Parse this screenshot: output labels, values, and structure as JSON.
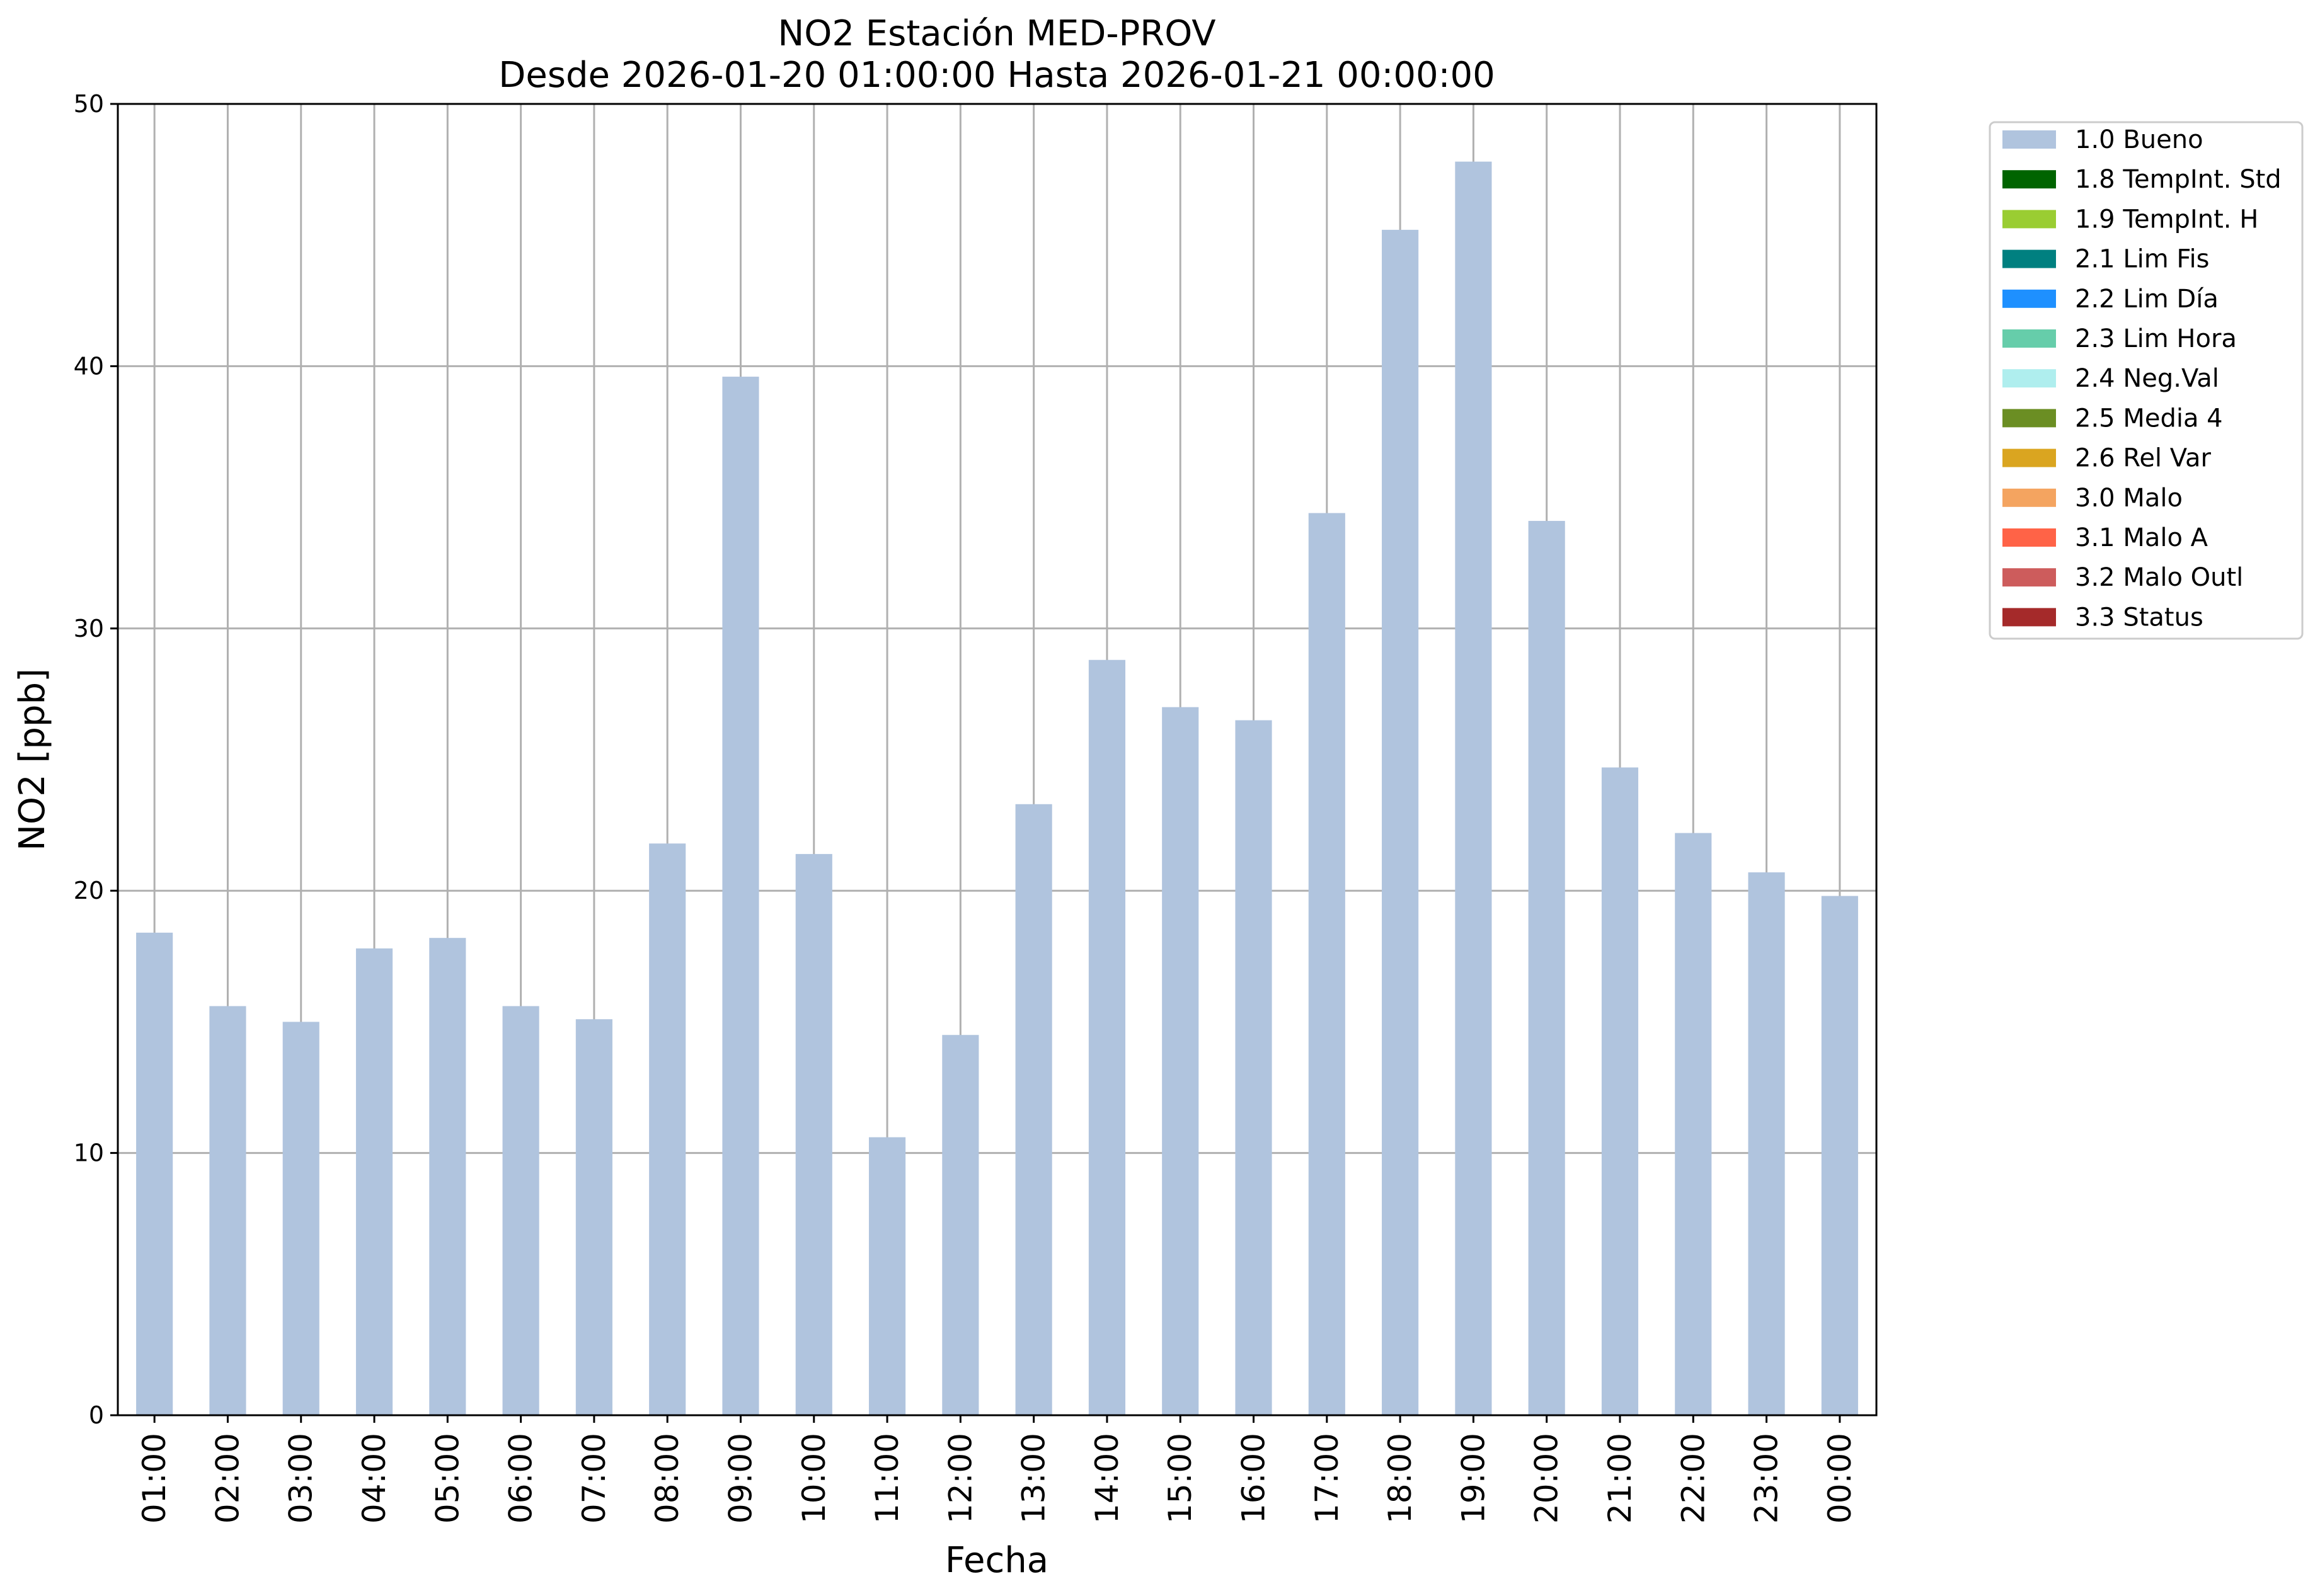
{
  "chart_data": {
    "type": "bar",
    "title_line1": "NO2 Estación MED-PROV",
    "title_line2": "Desde 2026-01-20 01:00:00 Hasta 2026-01-21 00:00:00",
    "xlabel": "Fecha",
    "ylabel": "NO2 [ppb]",
    "ylim": [
      0,
      50
    ],
    "yticks": [
      0,
      10,
      20,
      30,
      40,
      50
    ],
    "grid": true,
    "legend_position": "outside-top-right",
    "categories": [
      "01:00",
      "02:00",
      "03:00",
      "04:00",
      "05:00",
      "06:00",
      "07:00",
      "08:00",
      "09:00",
      "10:00",
      "11:00",
      "12:00",
      "13:00",
      "14:00",
      "15:00",
      "16:00",
      "17:00",
      "18:00",
      "19:00",
      "20:00",
      "21:00",
      "22:00",
      "23:00",
      "00:00"
    ],
    "series": [
      {
        "name": "1.0 Bueno",
        "color": "#b0c4de",
        "values": [
          18.4,
          15.6,
          15.0,
          17.8,
          18.2,
          15.6,
          15.1,
          21.8,
          39.6,
          21.4,
          10.6,
          14.5,
          23.3,
          28.8,
          27.0,
          26.5,
          34.4,
          45.2,
          47.8,
          34.1,
          24.7,
          22.2,
          20.7,
          19.8
        ]
      }
    ],
    "legend": [
      {
        "label": "1.0 Bueno",
        "color": "#b0c4de"
      },
      {
        "label": "1.8 TempInt. Std",
        "color": "#006400"
      },
      {
        "label": "1.9 TempInt. H",
        "color": "#9acd32"
      },
      {
        "label": "2.1 Lim Fis",
        "color": "#008080"
      },
      {
        "label": "2.2 Lim Día",
        "color": "#1e90ff"
      },
      {
        "label": "2.3 Lim Hora",
        "color": "#66cdaa"
      },
      {
        "label": "2.4 Neg.Val",
        "color": "#afeeee"
      },
      {
        "label": "2.5 Media 4",
        "color": "#6b8e23"
      },
      {
        "label": "2.6 Rel Var",
        "color": "#daa520"
      },
      {
        "label": "3.0 Malo",
        "color": "#f4a460"
      },
      {
        "label": "3.1 Malo A",
        "color": "#ff6347"
      },
      {
        "label": "3.2 Malo Outl",
        "color": "#cd5c5c"
      },
      {
        "label": "3.3 Status",
        "color": "#a52a2a"
      }
    ]
  }
}
